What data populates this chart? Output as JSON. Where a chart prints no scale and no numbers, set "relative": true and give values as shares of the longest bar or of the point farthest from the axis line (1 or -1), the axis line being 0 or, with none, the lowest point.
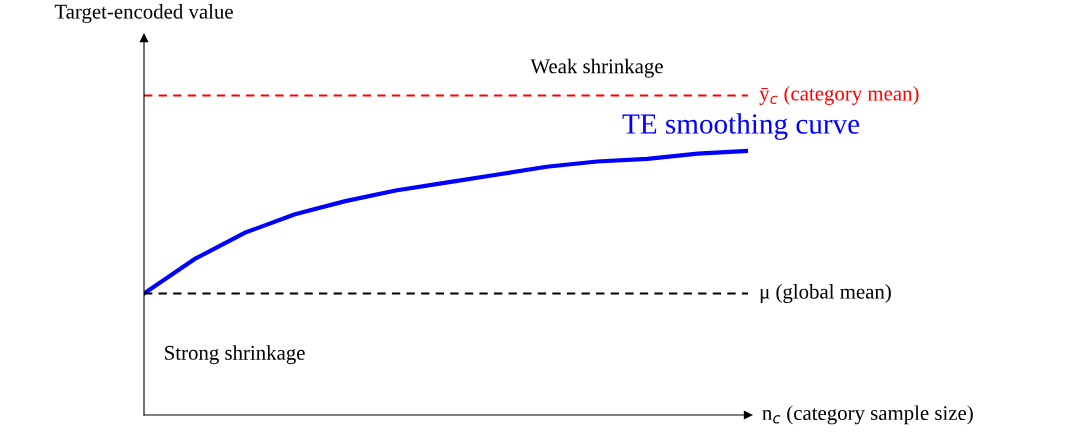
{
  "chart_data": {
    "type": "line",
    "relative": true,
    "xlabel": "n$_{c}$ (category sample size)",
    "categories": [
      null,
      null,
      null,
      null,
      null,
      null,
      null,
      null,
      null,
      null,
      null,
      null,
      null
    ],
    "series": [
      {
        "name": "TE smoothing curve",
        "color": "#0000ff",
        "values": [
          0.46,
          0.59,
          0.69,
          0.76,
          0.81,
          0.85,
          0.88,
          0.91,
          0.94,
          0.96,
          0.97,
          0.99,
          1.0
        ]
      }
    ],
    "ref_lines": [
      {
        "axis": "y",
        "value": 1.21,
        "label": "ȳ$_{c}$ (category mean)",
        "color": "#ff0000",
        "line_style": "dashed"
      },
      {
        "axis": "y",
        "value": 0.46,
        "label": "μ (global mean)",
        "color": "#000000",
        "line_style": "dashed"
      }
    ],
    "annotations": [
      "Target-encoded value",
      "Weak shrinkage",
      "Strong shrinkage"
    ]
  }
}
